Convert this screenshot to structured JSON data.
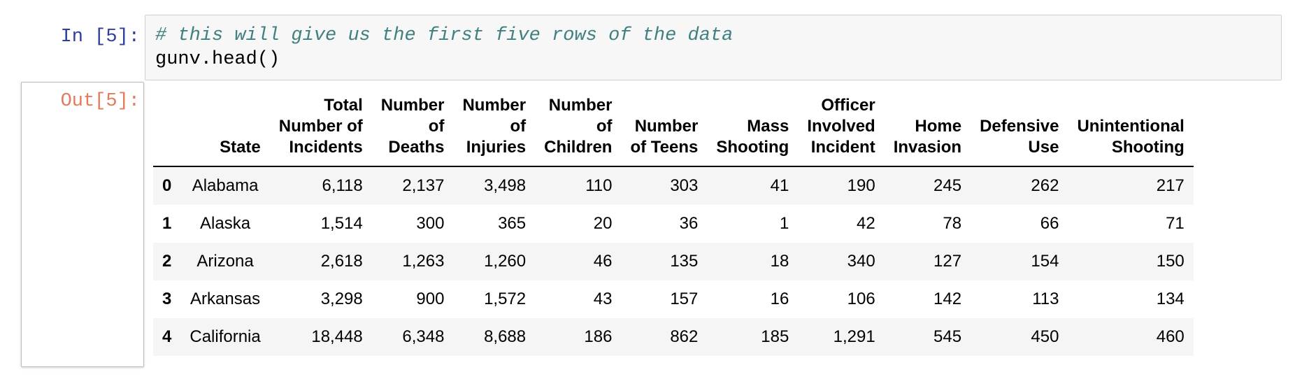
{
  "input_cell": {
    "prompt": "In [5]:",
    "comment": "# this will give us the first five rows of the data",
    "code": "gunv.head()"
  },
  "output_cell": {
    "prompt": "Out[5]:"
  },
  "dataframe": {
    "columns": [
      [
        "State"
      ],
      [
        "Total",
        "Number of",
        "Incidents"
      ],
      [
        "Number",
        "of",
        "Deaths"
      ],
      [
        "Number",
        "of",
        "Injuries"
      ],
      [
        "Number",
        "of",
        "Children"
      ],
      [
        "Number",
        "of Teens"
      ],
      [
        "Mass",
        "Shooting"
      ],
      [
        "Officer",
        "Involved",
        "Incident"
      ],
      [
        "Home",
        "Invasion"
      ],
      [
        "Defensive",
        "Use"
      ],
      [
        "Unintentional",
        "Shooting"
      ]
    ],
    "rows": [
      {
        "index": "0",
        "cells": [
          "Alabama",
          "6,118",
          "2,137",
          "3,498",
          "110",
          "303",
          "41",
          "190",
          "245",
          "262",
          "217"
        ]
      },
      {
        "index": "1",
        "cells": [
          "Alaska",
          "1,514",
          "300",
          "365",
          "20",
          "36",
          "1",
          "42",
          "78",
          "66",
          "71"
        ]
      },
      {
        "index": "2",
        "cells": [
          "Arizona",
          "2,618",
          "1,263",
          "1,260",
          "46",
          "135",
          "18",
          "340",
          "127",
          "154",
          "150"
        ]
      },
      {
        "index": "3",
        "cells": [
          "Arkansas",
          "3,298",
          "900",
          "1,572",
          "43",
          "157",
          "16",
          "106",
          "142",
          "113",
          "134"
        ]
      },
      {
        "index": "4",
        "cells": [
          "California",
          "18,448",
          "6,348",
          "8,688",
          "186",
          "862",
          "185",
          "1,291",
          "545",
          "450",
          "460"
        ]
      }
    ]
  }
}
